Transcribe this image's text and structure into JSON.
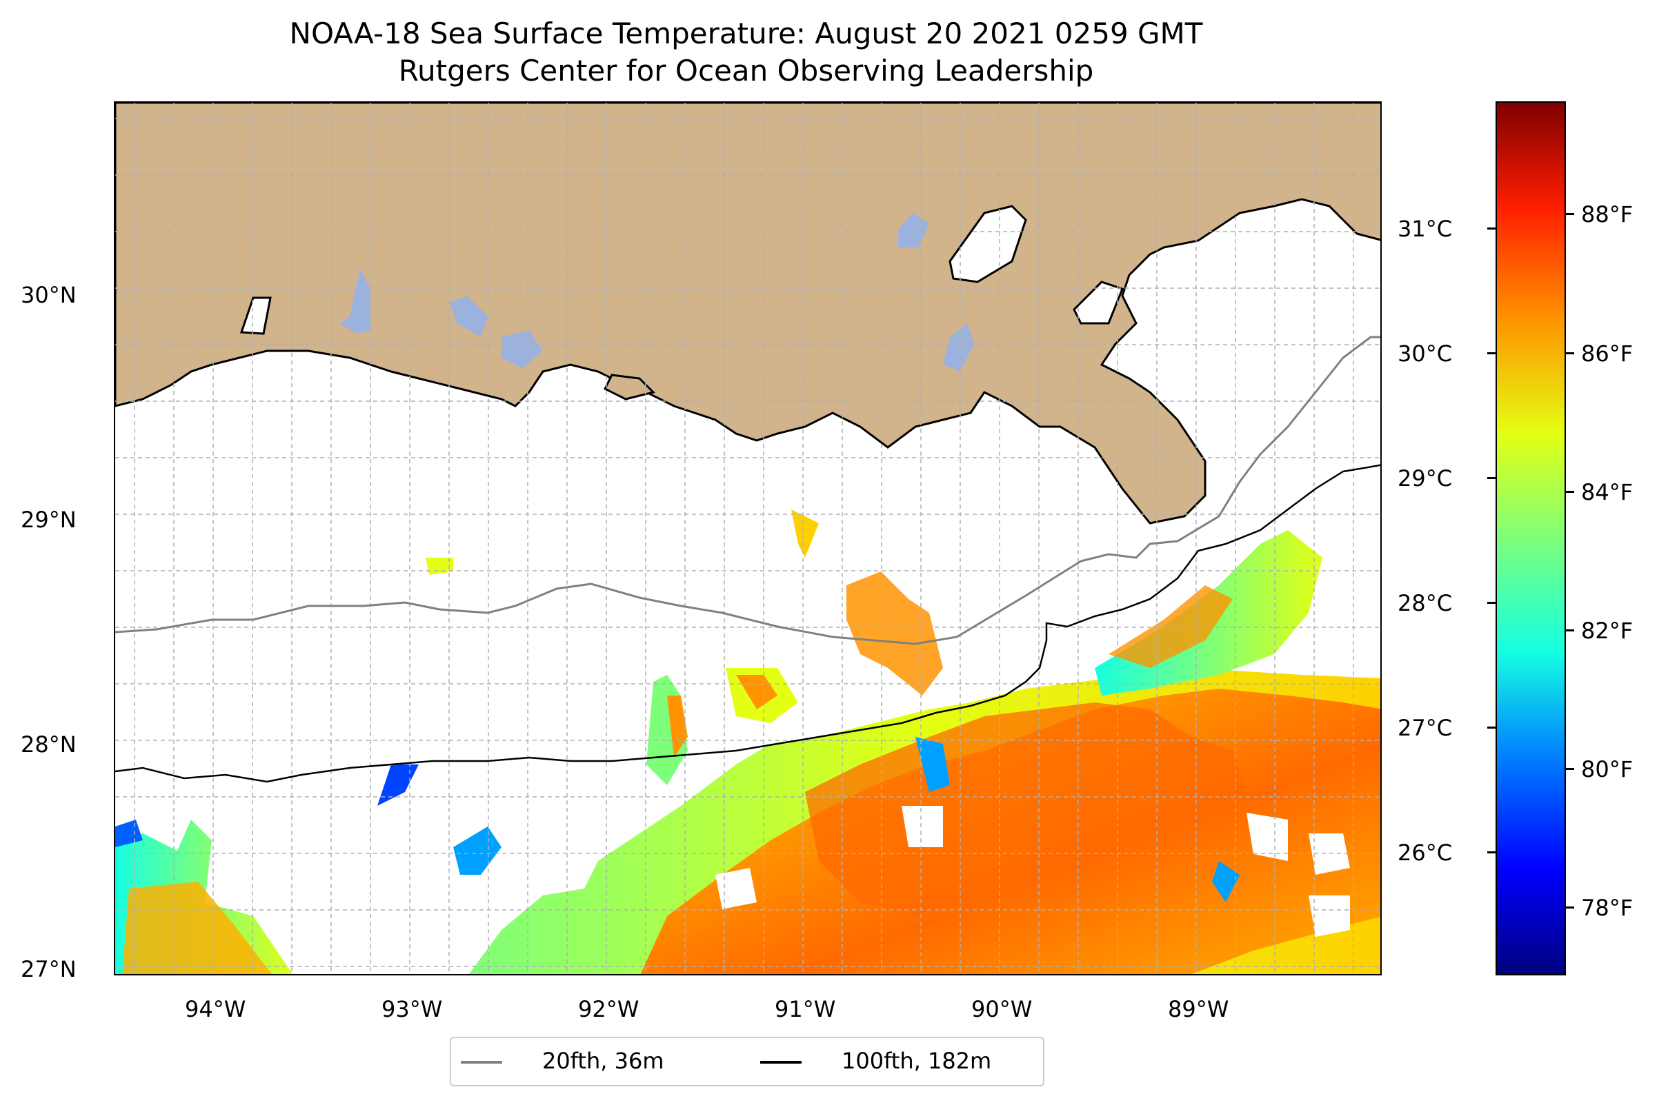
{
  "title": "NOAA-18 Sea Surface Temperature: August 20 2021 0259 GMT",
  "subtitle": "Rutgers Center for Ocean Observing Leadership",
  "map": {
    "lon_ticks": [
      "94°W",
      "93°W",
      "92°W",
      "91°W",
      "90°W",
      "89°W"
    ],
    "lat_ticks": [
      "30°N",
      "29°N",
      "28°N",
      "27°N"
    ],
    "land_color": "#d2b48c",
    "water_body_color": "#9bb2df",
    "no_data_color": "#ffffff",
    "gridlines": "dashed gray"
  },
  "colorbar": {
    "celsius_ticks": [
      "31°C",
      "30°C",
      "29°C",
      "28°C",
      "27°C",
      "26°C"
    ],
    "fahrenheit_ticks": [
      "88°F",
      "86°F",
      "84°F",
      "82°F",
      "80°F",
      "78°F"
    ],
    "colormap": "jet"
  },
  "legend": {
    "items": [
      {
        "label": "20fth, 36m",
        "color": "#808080"
      },
      {
        "label": "100fth, 182m",
        "color": "#000000"
      }
    ]
  }
}
